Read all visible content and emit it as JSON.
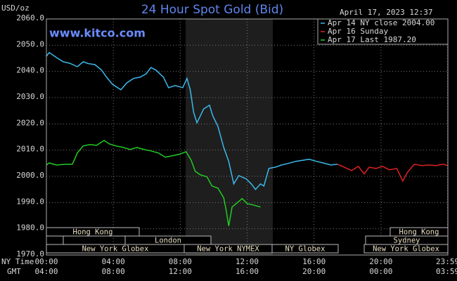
{
  "chart_data": {
    "type": "line",
    "title": "24 Hour Spot Gold (Bid)",
    "timestamp": "April 17, 2023 12:37",
    "website": "www.kitco.com",
    "y_unit": "USD/oz",
    "x_row_labels": [
      "NY Time",
      "GMT"
    ],
    "xlim": [
      0,
      24
    ],
    "xticks": [
      {
        "value": 0,
        "label": "00:00"
      },
      {
        "value": 4,
        "label": "04:00"
      },
      {
        "value": 8,
        "label": "08:00"
      },
      {
        "value": 12,
        "label": "12:00"
      },
      {
        "value": 16,
        "label": "16:00"
      },
      {
        "value": 20,
        "label": "20:00"
      },
      {
        "value": 23.98,
        "label": "23:59"
      }
    ],
    "gmt_labels": [
      "04:00",
      "08:00",
      "12:00",
      "16:00",
      "20:00",
      "00:00",
      "03:59"
    ],
    "ylim": [
      1970,
      2060
    ],
    "yticks": [
      {
        "value": 1970,
        "label": "1970.0"
      },
      {
        "value": 1980,
        "label": "1980.0"
      },
      {
        "value": 1990,
        "label": "1990.0"
      },
      {
        "value": 2000,
        "label": "2000.0"
      },
      {
        "value": 2010,
        "label": "2010.0"
      },
      {
        "value": 2020,
        "label": "2020.0"
      },
      {
        "value": 2030,
        "label": "2030.0"
      },
      {
        "value": 2040,
        "label": "2040.0"
      },
      {
        "value": 2050,
        "label": "2050.0"
      },
      {
        "value": 2060,
        "label": "2060.0"
      }
    ],
    "grid": true,
    "legend": "top-right",
    "sessions": [
      "Hong Kong",
      "London",
      "New York Globex",
      "New York NYMEX",
      "NY Globex",
      "Sydney",
      "Hong Kong",
      "New York Globex"
    ],
    "series": [
      {
        "name": "Apr 14 NY close 2004.00",
        "color": "#3cb8ec",
        "x": [
          0,
          0.17,
          0.6,
          1.0,
          1.4,
          1.85,
          2.2,
          2.5,
          2.9,
          3.3,
          3.6,
          3.95,
          4.45,
          4.8,
          5.2,
          5.6,
          5.97,
          6.25,
          6.55,
          7.0,
          7.3,
          7.7,
          8.15,
          8.4,
          8.6,
          8.8,
          9.0,
          9.2,
          9.4,
          9.75,
          9.95,
          10.25,
          10.6,
          10.9,
          11.2,
          11.5,
          11.95,
          12.25,
          12.5,
          12.8,
          13.0,
          13.3,
          13.7,
          14.05,
          14.45,
          14.9,
          15.4,
          15.7,
          16.15,
          16.55,
          17.0,
          17.4
        ],
        "values": [
          2045.8,
          2047.2,
          2045.3,
          2043.7,
          2043.1,
          2041.8,
          2043.7,
          2043.0,
          2042.6,
          2040.5,
          2037.8,
          2035.1,
          2033.0,
          2035.6,
          2037.3,
          2037.8,
          2039.1,
          2041.5,
          2040.5,
          2037.8,
          2033.8,
          2034.6,
          2033.8,
          2037.3,
          2033.0,
          2024.4,
          2020.4,
          2023.0,
          2025.7,
          2027.1,
          2023.0,
          2019.1,
          2011.0,
          2005.7,
          1997.1,
          2000.3,
          1999.0,
          1997.1,
          1995.0,
          1997.1,
          1996.3,
          2003.0,
          2003.5,
          2004.3,
          2004.9,
          2005.7,
          2006.2,
          2006.5,
          2005.7,
          2005.1,
          2004.3,
          2004.6
        ]
      },
      {
        "name": "Apr 16 Sunday",
        "color": "#dd2222",
        "x": [
          17.4,
          17.8,
          18.25,
          18.65,
          19.0,
          19.3,
          19.7,
          20.1,
          20.5,
          20.95,
          21.3,
          21.6,
          22.0,
          22.45,
          22.85,
          23.3,
          23.7,
          24.0
        ],
        "values": [
          2004.6,
          2003.5,
          2002.2,
          2003.8,
          2000.9,
          2003.5,
          2003.0,
          2003.8,
          2002.5,
          2003.0,
          1998.2,
          2001.7,
          2004.6,
          2004.1,
          2004.3,
          2004.1,
          2004.6,
          2004.1
        ]
      },
      {
        "name": "Apr 17 Last 1987.20",
        "color": "#22cc22",
        "x": [
          0,
          0.17,
          0.6,
          1.2,
          1.55,
          1.85,
          2.2,
          2.6,
          3.0,
          3.45,
          3.75,
          4.15,
          4.6,
          5.0,
          5.4,
          5.85,
          6.25,
          6.7,
          7.1,
          7.5,
          7.95,
          8.35,
          8.65,
          8.9,
          9.2,
          9.6,
          9.9,
          10.25,
          10.6,
          10.75,
          10.9,
          11.1,
          11.35,
          11.7,
          12.0,
          12.35,
          12.8
        ],
        "values": [
          2004.3,
          2005.1,
          2004.3,
          2004.6,
          2004.6,
          2008.9,
          2011.6,
          2012.1,
          2011.8,
          2013.7,
          2012.4,
          2011.6,
          2011.0,
          2010.2,
          2011.0,
          2010.2,
          2009.7,
          2008.9,
          2007.3,
          2007.8,
          2008.4,
          2009.4,
          2006.2,
          2001.9,
          2000.6,
          1999.8,
          1996.3,
          1995.5,
          1991.8,
          1986.9,
          1981.1,
          1988.3,
          1989.6,
          1991.5,
          1989.6,
          1989.1,
          1988.3
        ]
      }
    ]
  }
}
